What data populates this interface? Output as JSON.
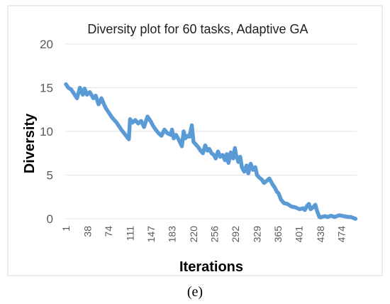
{
  "chart_data": {
    "type": "line",
    "title": "Diversity plot for 60 tasks, Adaptive GA",
    "xlabel": "Iterations",
    "ylabel": "Diversity",
    "ylim": [
      0,
      20
    ],
    "yticks": [
      "0",
      "5",
      "10",
      "15",
      "20"
    ],
    "xticks": [
      "1",
      "38",
      "74",
      "111",
      "147",
      "183",
      "220",
      "256",
      "292",
      "329",
      "365",
      "401",
      "438",
      "474"
    ],
    "grid": "horizontal",
    "legend": "none",
    "series_color": "#5b9bd5",
    "series": [
      {
        "x": [
          1,
          5,
          10,
          15,
          20,
          25,
          30,
          33,
          37,
          42,
          48,
          52,
          57,
          62,
          67,
          70,
          74,
          80,
          88,
          96,
          103,
          109,
          111,
          115,
          120,
          125,
          130,
          135,
          141,
          144,
          147,
          150,
          155,
          160,
          165,
          170,
          175,
          181,
          183,
          186,
          190,
          195,
          200,
          203,
          206,
          210,
          213,
          217,
          220,
          224,
          228,
          232,
          236,
          240,
          244,
          247,
          251,
          255,
          258,
          262,
          266,
          270,
          274,
          277,
          280,
          284,
          288,
          291,
          293,
          297,
          300,
          303,
          307,
          311,
          314,
          318,
          322,
          326,
          329,
          333,
          337,
          341,
          345,
          350,
          355,
          360,
          363,
          366,
          370,
          375,
          381,
          388,
          395,
          402,
          408,
          411,
          415,
          418,
          421,
          425,
          429,
          432,
          436,
          438,
          442,
          446,
          450,
          456,
          462,
          466,
          470,
          474,
          478,
          482,
          486,
          490,
          494,
          498
        ],
        "y": [
          15.4,
          15.0,
          14.8,
          14.3,
          13.8,
          15.0,
          14.2,
          14.9,
          14.2,
          14.5,
          13.8,
          14.1,
          13.1,
          13.8,
          13.0,
          12.6,
          12.2,
          11.6,
          11.0,
          10.2,
          9.6,
          9.1,
          11.4,
          11.0,
          11.3,
          10.9,
          11.2,
          10.5,
          11.7,
          11.4,
          11.1,
          10.7,
          10.2,
          9.8,
          9.5,
          10.2,
          9.8,
          9.6,
          10.2,
          9.2,
          9.6,
          9.0,
          8.3,
          10.0,
          9.2,
          9.5,
          9.4,
          10.7,
          8.8,
          8.5,
          8.2,
          7.8,
          7.5,
          8.4,
          7.8,
          8.0,
          7.5,
          7.3,
          6.9,
          7.7,
          7.1,
          7.3,
          6.7,
          7.4,
          6.4,
          7.6,
          6.9,
          8.1,
          7.3,
          6.5,
          7.1,
          5.9,
          5.4,
          6.1,
          5.2,
          6.3,
          5.6,
          5.9,
          5.0,
          4.7,
          4.5,
          4.1,
          4.3,
          4.6,
          4.0,
          3.5,
          3.1,
          2.9,
          2.2,
          1.8,
          1.7,
          1.4,
          1.3,
          1.1,
          1.2,
          1.0,
          1.5,
          1.7,
          1.1,
          1.3,
          1.6,
          0.9,
          0.2,
          0.15,
          0.25,
          0.3,
          0.2,
          0.35,
          0.2,
          0.3,
          0.4,
          0.35,
          0.3,
          0.25,
          0.2,
          0.2,
          0.1,
          0.0
        ]
      }
    ]
  },
  "caption": "(e)"
}
